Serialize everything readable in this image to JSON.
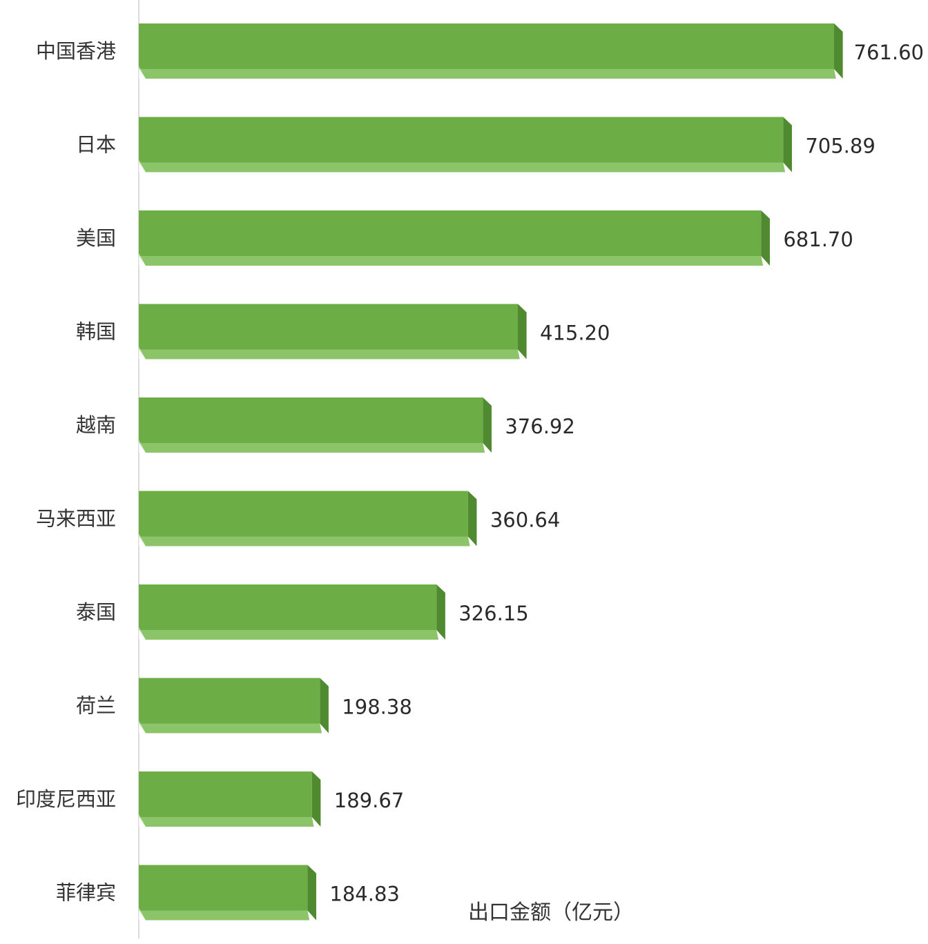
{
  "chart_data": {
    "type": "bar",
    "orientation": "horizontal",
    "categories": [
      "中国香港",
      "日本",
      "美国",
      "韩国",
      "越南",
      "马来西亚",
      "泰国",
      "荷兰",
      "印度尼西亚",
      "菲律宾"
    ],
    "values": [
      761.6,
      705.89,
      681.7,
      415.2,
      376.92,
      360.64,
      326.15,
      198.38,
      189.67,
      184.83
    ],
    "value_labels": [
      "761.60",
      "705.89",
      "681.70",
      "415.20",
      "376.92",
      "360.64",
      "326.15",
      "198.38",
      "189.67",
      "184.83"
    ],
    "title": "",
    "xlabel": "出口金额（亿元）",
    "ylabel": "",
    "xlim": [
      0,
      761.6
    ],
    "grid": false,
    "legend": "none",
    "colors": {
      "bar_front": "#6cad45",
      "bar_bottom": "#8cc46a",
      "bar_side": "#4f8a30",
      "axis_line": "#d8d8d8"
    }
  }
}
